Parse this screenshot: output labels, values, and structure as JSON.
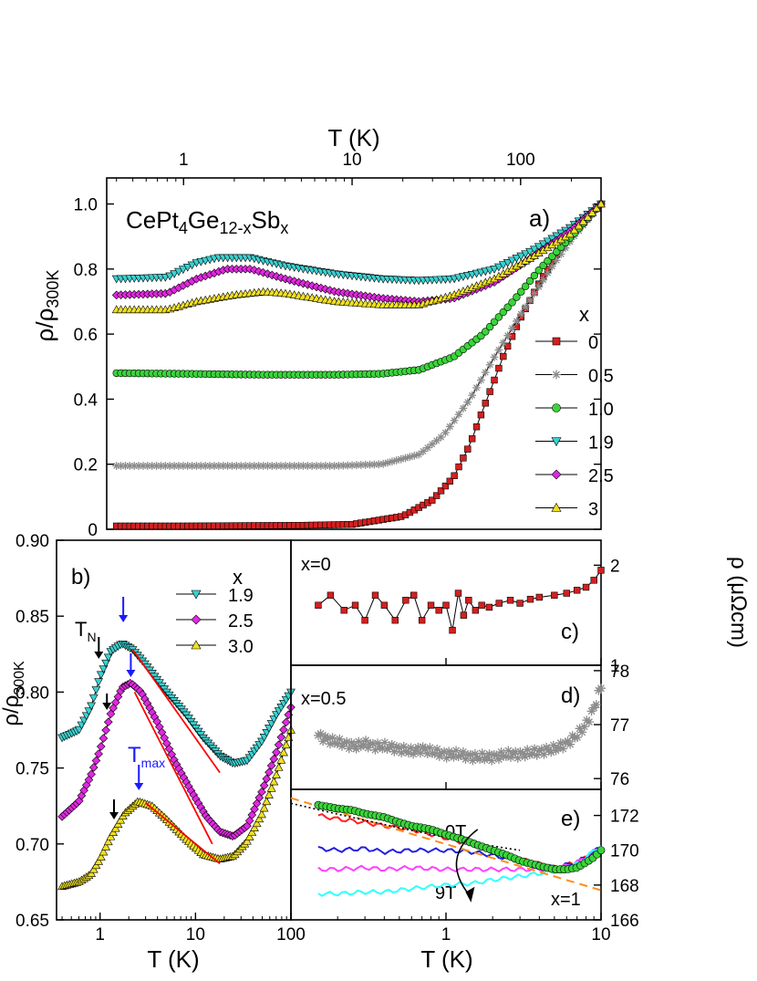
{
  "chart_data": [
    {
      "panel": "a)",
      "type": "scatter",
      "annotation": "CePt4Ge12-xSbx",
      "xlabel": "T (K)",
      "xscale": "log",
      "xlim": [
        0.35,
        300
      ],
      "xticks": [
        "1",
        "10",
        "100"
      ],
      "ylabel": "ρ/ρ300K",
      "ylim": [
        0,
        1.08
      ],
      "yticks": [
        "0",
        "0.2",
        "0.4",
        "0.6",
        "0.8",
        "1.0"
      ],
      "legend_title": "x",
      "legend_position": "right",
      "series": [
        {
          "name": "0",
          "color": "#d42020",
          "marker": "square",
          "points": [
            [
              0.4,
              0.01
            ],
            [
              1,
              0.01
            ],
            [
              5,
              0.012
            ],
            [
              10,
              0.015
            ],
            [
              20,
              0.04
            ],
            [
              30,
              0.09
            ],
            [
              40,
              0.16
            ],
            [
              50,
              0.26
            ],
            [
              60,
              0.37
            ],
            [
              70,
              0.46
            ],
            [
              80,
              0.54
            ],
            [
              100,
              0.65
            ],
            [
              130,
              0.76
            ],
            [
              170,
              0.86
            ],
            [
              220,
              0.94
            ],
            [
              300,
              1.0
            ]
          ]
        },
        {
          "name": "0.5",
          "color": "#8c8c8c",
          "marker": "star",
          "points": [
            [
              0.4,
              0.195
            ],
            [
              1,
              0.195
            ],
            [
              3,
              0.195
            ],
            [
              8,
              0.195
            ],
            [
              15,
              0.2
            ],
            [
              25,
              0.23
            ],
            [
              35,
              0.29
            ],
            [
              50,
              0.4
            ],
            [
              70,
              0.53
            ],
            [
              100,
              0.66
            ],
            [
              150,
              0.8
            ],
            [
              200,
              0.89
            ],
            [
              300,
              1.0
            ]
          ]
        },
        {
          "name": "1.0",
          "color": "#3ad43a",
          "marker": "circle",
          "points": [
            [
              0.4,
              0.48
            ],
            [
              1,
              0.478
            ],
            [
              3,
              0.475
            ],
            [
              8,
              0.475
            ],
            [
              15,
              0.478
            ],
            [
              25,
              0.49
            ],
            [
              40,
              0.53
            ],
            [
              60,
              0.6
            ],
            [
              90,
              0.7
            ],
            [
              130,
              0.8
            ],
            [
              200,
              0.9
            ],
            [
              300,
              1.0
            ]
          ]
        },
        {
          "name": "1.9",
          "color": "#3ad0d0",
          "marker": "triangle-down",
          "points": [
            [
              0.4,
              0.77
            ],
            [
              0.8,
              0.775
            ],
            [
              1.2,
              0.82
            ],
            [
              1.6,
              0.835
            ],
            [
              2.5,
              0.835
            ],
            [
              4,
              0.81
            ],
            [
              8,
              0.785
            ],
            [
              15,
              0.77
            ],
            [
              25,
              0.765
            ],
            [
              40,
              0.77
            ],
            [
              70,
              0.8
            ],
            [
              120,
              0.86
            ],
            [
              200,
              0.93
            ],
            [
              300,
              1.0
            ]
          ]
        },
        {
          "name": "2.5",
          "color": "#e028e0",
          "marker": "diamond",
          "points": [
            [
              0.4,
              0.72
            ],
            [
              0.8,
              0.725
            ],
            [
              1.2,
              0.77
            ],
            [
              1.8,
              0.8
            ],
            [
              2.5,
              0.8
            ],
            [
              4,
              0.77
            ],
            [
              8,
              0.73
            ],
            [
              15,
              0.71
            ],
            [
              25,
              0.7
            ],
            [
              40,
              0.71
            ],
            [
              70,
              0.76
            ],
            [
              120,
              0.84
            ],
            [
              200,
              0.92
            ],
            [
              300,
              1.0
            ]
          ]
        },
        {
          "name": "3",
          "color": "#f0e020",
          "marker": "triangle-up",
          "points": [
            [
              0.4,
              0.675
            ],
            [
              0.8,
              0.675
            ],
            [
              1.2,
              0.7
            ],
            [
              2,
              0.72
            ],
            [
              3,
              0.73
            ],
            [
              4,
              0.725
            ],
            [
              8,
              0.7
            ],
            [
              15,
              0.69
            ],
            [
              25,
              0.69
            ],
            [
              40,
              0.72
            ],
            [
              70,
              0.77
            ],
            [
              120,
              0.84
            ],
            [
              200,
              0.91
            ],
            [
              300,
              1.0
            ]
          ]
        }
      ]
    },
    {
      "panel": "b)",
      "type": "scatter",
      "xlabel": "T (K)",
      "xscale": "log",
      "xlim": [
        0.35,
        100
      ],
      "xticks": [
        "1",
        "10",
        "100"
      ],
      "ylabel": "ρ/ρ300K",
      "ylim": [
        0.65,
        0.9
      ],
      "yticks": [
        "0.65",
        "0.70",
        "0.75",
        "0.80",
        "0.85",
        "0.90"
      ],
      "legend_title": "x",
      "legend_position": "top-right",
      "annotations": {
        "tn": "T",
        "tn_sub": "N",
        "tmax": "T",
        "tmax_sub": "max"
      },
      "series": [
        {
          "name": "1.9",
          "color": "#3ad0d0",
          "marker": "triangle-down",
          "points": [
            [
              0.4,
              0.77
            ],
            [
              0.6,
              0.775
            ],
            [
              0.8,
              0.79
            ],
            [
              1,
              0.81
            ],
            [
              1.3,
              0.827
            ],
            [
              1.7,
              0.832
            ],
            [
              2.2,
              0.828
            ],
            [
              3,
              0.818
            ],
            [
              5,
              0.8
            ],
            [
              8,
              0.785
            ],
            [
              12,
              0.77
            ],
            [
              18,
              0.758
            ],
            [
              25,
              0.753
            ],
            [
              35,
              0.755
            ],
            [
              50,
              0.768
            ],
            [
              70,
              0.785
            ],
            [
              100,
              0.8
            ]
          ]
        },
        {
          "name": "2.5",
          "color": "#e028e0",
          "marker": "diamond",
          "points": [
            [
              0.4,
              0.718
            ],
            [
              0.6,
              0.728
            ],
            [
              0.8,
              0.745
            ],
            [
              1,
              0.762
            ],
            [
              1.3,
              0.786
            ],
            [
              1.7,
              0.803
            ],
            [
              2.1,
              0.806
            ],
            [
              2.7,
              0.8
            ],
            [
              4,
              0.78
            ],
            [
              6,
              0.755
            ],
            [
              9,
              0.735
            ],
            [
              13,
              0.718
            ],
            [
              18,
              0.708
            ],
            [
              25,
              0.705
            ],
            [
              35,
              0.712
            ],
            [
              50,
              0.735
            ],
            [
              70,
              0.76
            ],
            [
              100,
              0.79
            ]
          ]
        },
        {
          "name": "3.0",
          "color": "#f0e020",
          "marker": "triangle-up",
          "points": [
            [
              0.4,
              0.672
            ],
            [
              0.6,
              0.675
            ],
            [
              0.8,
              0.68
            ],
            [
              1,
              0.69
            ],
            [
              1.3,
              0.705
            ],
            [
              1.8,
              0.72
            ],
            [
              2.5,
              0.728
            ],
            [
              3.5,
              0.725
            ],
            [
              5,
              0.716
            ],
            [
              8,
              0.703
            ],
            [
              12,
              0.693
            ],
            [
              18,
              0.69
            ],
            [
              25,
              0.692
            ],
            [
              35,
              0.702
            ],
            [
              50,
              0.72
            ],
            [
              70,
              0.745
            ],
            [
              100,
              0.775
            ]
          ]
        }
      ]
    },
    {
      "panel": "c)",
      "type": "line",
      "label": "x=0",
      "color": "#d42020",
      "xscale": "log",
      "xlim": [
        0.1,
        10
      ],
      "ylabel_right": "ρ (μΩcm)",
      "ylim": [
        1,
        2.25
      ],
      "yticks": [
        "1",
        "2"
      ],
      "x": [
        0.15,
        0.18,
        0.22,
        0.26,
        0.3,
        0.35,
        0.4,
        0.47,
        0.55,
        0.62,
        0.7,
        0.8,
        0.9,
        1.0,
        1.1,
        1.2,
        1.3,
        1.4,
        1.55,
        1.7,
        1.9,
        2.2,
        2.6,
        3.0,
        3.5,
        4,
        5,
        6,
        7,
        8,
        9,
        10
      ],
      "y": [
        1.6,
        1.7,
        1.55,
        1.6,
        1.45,
        1.7,
        1.6,
        1.45,
        1.65,
        1.7,
        1.45,
        1.6,
        1.55,
        1.6,
        1.35,
        1.72,
        1.5,
        1.65,
        1.55,
        1.6,
        1.58,
        1.62,
        1.65,
        1.62,
        1.66,
        1.68,
        1.7,
        1.72,
        1.75,
        1.78,
        1.85,
        1.95
      ]
    },
    {
      "panel": "d)",
      "type": "line",
      "label": "x=0.5",
      "color": "#8c8c8c",
      "xscale": "log",
      "xlim": [
        0.1,
        10
      ],
      "ylim": [
        75.8,
        78.1
      ],
      "yticks": [
        "76",
        "77",
        "78"
      ],
      "x": [
        0.15,
        0.18,
        0.22,
        0.26,
        0.3,
        0.35,
        0.4,
        0.5,
        0.6,
        0.7,
        0.8,
        1.0,
        1.2,
        1.5,
        2,
        2.5,
        3,
        4,
        5,
        6,
        7,
        8,
        9,
        10
      ],
      "y": [
        76.8,
        76.7,
        76.65,
        76.6,
        76.65,
        76.6,
        76.6,
        76.55,
        76.5,
        76.55,
        76.5,
        76.45,
        76.45,
        76.4,
        76.4,
        76.45,
        76.45,
        76.5,
        76.55,
        76.65,
        76.8,
        77.0,
        77.3,
        77.7
      ]
    },
    {
      "panel": "e)",
      "type": "line",
      "label": "x=1",
      "xscale": "log",
      "xlim": [
        0.1,
        10
      ],
      "ylim": [
        166,
        173.5
      ],
      "yticks": [
        "166",
        "168",
        "170",
        "172"
      ],
      "field_labels": [
        "0T",
        "9T"
      ],
      "series": [
        {
          "name": "0T",
          "color": "#3ad43a",
          "marker": "circle",
          "x": [
            0.15,
            0.2,
            0.25,
            0.3,
            0.4,
            0.5,
            0.6,
            0.8,
            1.0,
            1.3,
            1.6,
            2.0,
            2.5,
            3.0,
            4,
            5,
            6,
            7,
            8,
            9,
            10
          ],
          "y": [
            172.6,
            172.4,
            172.3,
            172.1,
            171.9,
            171.6,
            171.4,
            171.2,
            170.9,
            170.6,
            170.3,
            170.0,
            169.7,
            169.4,
            169.1,
            168.9,
            168.9,
            169.0,
            169.3,
            169.6,
            170.0
          ]
        },
        {
          "color": "#ff2020",
          "x": [
            0.15,
            0.2,
            0.3,
            0.4,
            0.6,
            1,
            1.5,
            2,
            3,
            5,
            7,
            10
          ],
          "y": [
            172.0,
            171.8,
            171.6,
            171.4,
            171.2,
            170.7,
            170.3,
            170.0,
            169.5,
            169.0,
            169.3,
            170.1
          ]
        },
        {
          "color": "#2020e0",
          "x": [
            0.15,
            0.2,
            0.3,
            0.4,
            0.6,
            1,
            1.5,
            2,
            3,
            5,
            7,
            10
          ],
          "y": [
            170.1,
            170.0,
            170.1,
            169.9,
            170.0,
            170.0,
            169.9,
            169.7,
            169.4,
            169.0,
            169.3,
            170.2
          ]
        },
        {
          "color": "#ff40ff",
          "x": [
            0.15,
            0.2,
            0.3,
            0.4,
            0.6,
            1,
            1.5,
            2,
            3,
            5,
            7,
            10
          ],
          "y": [
            168.9,
            168.9,
            169.0,
            168.9,
            169.0,
            168.9,
            168.9,
            168.9,
            168.9,
            168.9,
            169.3,
            170.2
          ]
        },
        {
          "color": "#30ffff",
          "x": [
            0.15,
            0.2,
            0.3,
            0.4,
            0.6,
            1,
            1.5,
            2,
            3,
            5,
            7,
            10
          ],
          "y": [
            167.5,
            167.5,
            167.6,
            167.6,
            167.8,
            168.0,
            168.1,
            168.3,
            168.5,
            168.8,
            169.2,
            170.3
          ]
        }
      ],
      "fit_lines": {
        "dotted_color": "#000000",
        "dashed_color": "#ff8c1a"
      }
    }
  ],
  "shared_bottom_xlabel_right": "T (K)",
  "shared_bottom_xticks_right": [
    "1",
    "10"
  ]
}
